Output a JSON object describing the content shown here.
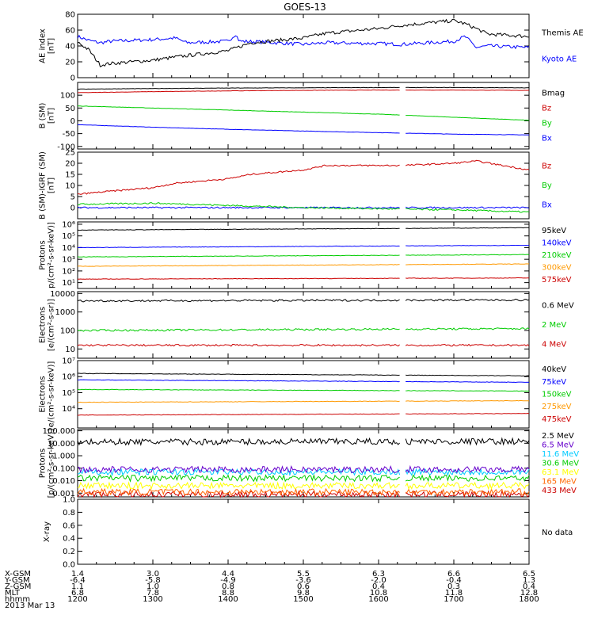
{
  "title": "GOES-13",
  "x_range": [
    1200,
    1800
  ],
  "no_data_text": "No data",
  "footer": {
    "rows": [
      {
        "label": "X-GSM",
        "values": [
          "1.4",
          "3.0",
          "4.4",
          "5.5",
          "6.3",
          "6.6",
          "6.5"
        ]
      },
      {
        "label": "Y-GSM",
        "values": [
          "-6.4",
          "-5.8",
          "-4.9",
          "-3.6",
          "-2.0",
          "-0.4",
          "1.3"
        ]
      },
      {
        "label": "Z-GSM",
        "values": [
          "1.1",
          "1.0",
          "0.8",
          "0.6",
          "0.4",
          "0.3",
          "0.4"
        ]
      },
      {
        "label": "MLT",
        "values": [
          "6.8",
          "7.8",
          "8.8",
          "9.8",
          "10.8",
          "11.8",
          "12.8"
        ]
      },
      {
        "label": "hhmm",
        "values": [
          "1200",
          "1300",
          "1400",
          "1500",
          "1600",
          "1700",
          "1800"
        ]
      }
    ],
    "date": "2013 Mar 13"
  },
  "chart_data": [
    {
      "type": "line",
      "id": "ae",
      "ylabel": [
        "AE index",
        "[nT]"
      ],
      "ylim": [
        0,
        80
      ],
      "scale": "linear",
      "yticks": [
        "0",
        "20",
        "40",
        "60",
        "80"
      ],
      "ytick_values": [
        0,
        20,
        40,
        60,
        80
      ],
      "series": [
        {
          "name": "Kyoto AE",
          "color": "#0000ff",
          "x": [
            1200,
            1215,
            1230,
            1245,
            1300,
            1330,
            1345,
            1400,
            1410,
            1415,
            1445,
            1500,
            1530,
            1600,
            1630,
            1700,
            1715,
            1730,
            1745,
            1800
          ],
          "y": [
            52,
            47,
            44,
            46,
            48,
            50,
            44,
            46,
            55,
            46,
            45,
            42,
            44,
            43,
            42,
            46,
            52,
            38,
            40,
            38
          ]
        },
        {
          "name": "Themis AE",
          "color": "#000000",
          "x": [
            1200,
            1215,
            1230,
            1245,
            1300,
            1330,
            1400,
            1430,
            1500,
            1530,
            1600,
            1630,
            1700,
            1715,
            1730,
            1745,
            1800
          ],
          "y": [
            45,
            35,
            16,
            18,
            22,
            26,
            34,
            44,
            50,
            56,
            62,
            66,
            72,
            68,
            62,
            55,
            52
          ]
        }
      ]
    },
    {
      "type": "line",
      "id": "bsm",
      "ylabel": [
        "B (SM)",
        "[nT]"
      ],
      "ylim": [
        -110,
        150
      ],
      "scale": "linear",
      "yticks": [
        "-100",
        "-50",
        "0",
        "50",
        "100"
      ],
      "ytick_values": [
        -100,
        -50,
        0,
        50,
        100
      ],
      "series": [
        {
          "name": "Bx",
          "color": "#0000ff",
          "x": [
            1200,
            1300,
            1400,
            1500,
            1600,
            1700,
            1800
          ],
          "y": [
            -15,
            -25,
            -33,
            -40,
            -46,
            -52,
            -55
          ]
        },
        {
          "name": "By",
          "color": "#00cc00",
          "x": [
            1200,
            1300,
            1400,
            1500,
            1600,
            1700,
            1800
          ],
          "y": [
            58,
            50,
            42,
            34,
            26,
            14,
            2
          ]
        },
        {
          "name": "Bz",
          "color": "#cc0000",
          "x": [
            1200,
            1300,
            1400,
            1500,
            1600,
            1700,
            1800
          ],
          "y": [
            110,
            114,
            117,
            119,
            120,
            120,
            119
          ]
        },
        {
          "name": "Bmag",
          "color": "#000000",
          "x": [
            1200,
            1300,
            1400,
            1500,
            1600,
            1700,
            1800
          ],
          "y": [
            124,
            126,
            128,
            129,
            130,
            130,
            129
          ]
        }
      ],
      "gap": [
        1630,
        1635
      ]
    },
    {
      "type": "line",
      "id": "bdiff",
      "ylabel": [
        "B (SM)-IGRF (SM)",
        "[nT]"
      ],
      "ylim": [
        -5,
        25
      ],
      "scale": "linear",
      "yticks": [
        "0",
        "5",
        "10",
        "15",
        "20",
        "25"
      ],
      "ytick_values": [
        0,
        5,
        10,
        15,
        20,
        25
      ],
      "series": [
        {
          "name": "Bx",
          "color": "#0000ff",
          "x": [
            1200,
            1300,
            1400,
            1500,
            1600,
            1700,
            1800
          ],
          "y": [
            0,
            0,
            0,
            0,
            0,
            0,
            0
          ]
        },
        {
          "name": "By",
          "color": "#00cc00",
          "x": [
            1200,
            1300,
            1400,
            1500,
            1600,
            1700,
            1800
          ],
          "y": [
            1.5,
            2,
            1,
            0,
            -0.5,
            -1,
            -2
          ]
        },
        {
          "name": "Bz",
          "color": "#cc0000",
          "x": [
            1200,
            1230,
            1300,
            1330,
            1400,
            1430,
            1500,
            1530,
            1600,
            1630,
            1700,
            1730,
            1800
          ],
          "y": [
            6,
            7,
            9,
            11,
            13,
            15,
            17,
            19,
            19,
            19,
            20,
            21,
            17
          ]
        }
      ],
      "gap": [
        1630,
        1635
      ]
    },
    {
      "type": "line",
      "id": "prot_hi",
      "ylabel": [
        "Protons",
        "p/(cm²-s-sr-keV)]"
      ],
      "ylim": [
        0.5,
        6.2
      ],
      "scale": "log",
      "yticks": [
        "10¹",
        "10²",
        "10³",
        "10⁴",
        "10⁵",
        "10⁶"
      ],
      "ytick_values": [
        1,
        2,
        3,
        4,
        5,
        6
      ],
      "series": [
        {
          "name": "575keV",
          "color": "#cc0000",
          "x": [
            1200,
            1800
          ],
          "y": [
            1.3,
            1.4
          ]
        },
        {
          "name": "300keV",
          "color": "#ff9900",
          "x": [
            1200,
            1800
          ],
          "y": [
            2.4,
            2.6
          ]
        },
        {
          "name": "210keV",
          "color": "#00cc00",
          "x": [
            1200,
            1800
          ],
          "y": [
            3.2,
            3.4
          ]
        },
        {
          "name": "140keV",
          "color": "#0000ff",
          "x": [
            1200,
            1800
          ],
          "y": [
            4.0,
            4.2
          ]
        },
        {
          "name": "95keV",
          "color": "#000000",
          "x": [
            1200,
            1800
          ],
          "y": [
            5.5,
            5.7
          ]
        }
      ],
      "gap": [
        1630,
        1635
      ]
    },
    {
      "type": "line",
      "id": "elec_mev",
      "ylabel": [
        "Electrons",
        "[e/(cm²-s-sr)]"
      ],
      "ylim": [
        0.5,
        4.1
      ],
      "scale": "log",
      "yticks": [
        "10",
        "100",
        "1000",
        "10000"
      ],
      "ytick_values": [
        1,
        2,
        3,
        4
      ],
      "series": [
        {
          "name": "4 MeV",
          "color": "#cc0000",
          "x": [
            1200,
            1800
          ],
          "y": [
            1.2,
            1.2
          ]
        },
        {
          "name": "2 MeV",
          "color": "#00cc00",
          "x": [
            1200,
            1800
          ],
          "y": [
            2.0,
            2.1
          ]
        },
        {
          "name": "0.6 MeV",
          "color": "#000000",
          "x": [
            1200,
            1800
          ],
          "y": [
            3.6,
            3.65
          ]
        }
      ],
      "gap": [
        1630,
        1635
      ]
    },
    {
      "type": "line",
      "id": "elec_kev",
      "ylabel": [
        "Electrons",
        "e/(cm²-s-sr-keV)]"
      ],
      "ylim": [
        2.8,
        7
      ],
      "scale": "log",
      "yticks": [
        "10⁴",
        "10⁵",
        "10⁶",
        "10⁷"
      ],
      "ytick_values": [
        4,
        5,
        6,
        7
      ],
      "series": [
        {
          "name": "475keV",
          "color": "#cc0000",
          "x": [
            1200,
            1800
          ],
          "y": [
            3.6,
            3.7
          ]
        },
        {
          "name": "275keV",
          "color": "#ff9900",
          "x": [
            1200,
            1800
          ],
          "y": [
            4.4,
            4.5
          ]
        },
        {
          "name": "150keV",
          "color": "#00cc00",
          "x": [
            1200,
            1800
          ],
          "y": [
            5.2,
            5.1
          ]
        },
        {
          "name": "75keV",
          "color": "#0000ff",
          "x": [
            1200,
            1800
          ],
          "y": [
            5.8,
            5.65
          ]
        },
        {
          "name": "40keV",
          "color": "#000000",
          "x": [
            1200,
            1800
          ],
          "y": [
            6.2,
            6.05
          ]
        }
      ],
      "gap": [
        1630,
        1635
      ]
    },
    {
      "type": "line",
      "id": "prot_mev",
      "ylabel": [
        "Protons",
        "[p/(cm²-s-sr-keV)]"
      ],
      "ylim": [
        -3.3,
        2.1
      ],
      "scale": "log",
      "yticks": [
        "0.001",
        "0.010",
        "0.100",
        "1.000",
        "10.000",
        "100.000"
      ],
      "ytick_values": [
        -3,
        -2,
        -1,
        0,
        1,
        2
      ],
      "series": [
        {
          "name": "433 MeV",
          "color": "#cc0000",
          "x": [
            1200,
            1800
          ],
          "y": [
            -3.1,
            -3.1
          ]
        },
        {
          "name": "165 MeV",
          "color": "#ff6600",
          "x": [
            1200,
            1800
          ],
          "y": [
            -2.9,
            -2.9
          ]
        },
        {
          "name": "63.1 MeV",
          "color": "#ffff00",
          "x": [
            1200,
            1800
          ],
          "y": [
            -2.4,
            -2.4
          ]
        },
        {
          "name": "30.6 MeV",
          "color": "#00cc00",
          "x": [
            1200,
            1800
          ],
          "y": [
            -1.8,
            -1.8
          ]
        },
        {
          "name": "11.6 MeV",
          "color": "#00ccff",
          "x": [
            1200,
            1800
          ],
          "y": [
            -1.3,
            -1.3
          ]
        },
        {
          "name": "6.5 MeV",
          "color": "#6600cc",
          "x": [
            1200,
            1800
          ],
          "y": [
            -1.1,
            -1.1
          ]
        },
        {
          "name": "2.5 MeV",
          "color": "#000000",
          "x": [
            1200,
            1800
          ],
          "y": [
            1.1,
            1.15
          ]
        }
      ],
      "gap": [
        1630,
        1635
      ]
    },
    {
      "type": "line",
      "id": "xray",
      "ylabel": [
        "X-ray"
      ],
      "ylim": [
        0,
        1
      ],
      "scale": "linear",
      "yticks": [
        "0.0",
        "0.2",
        "0.4",
        "0.6",
        "0.8",
        "1.0"
      ],
      "ytick_values": [
        0,
        0.2,
        0.4,
        0.6,
        0.8,
        1.0
      ],
      "series": []
    }
  ]
}
